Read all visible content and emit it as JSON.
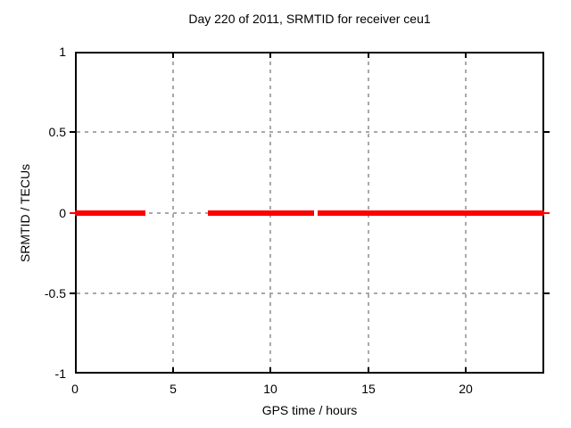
{
  "title": "Day 220 of 2011, SRMTID for receiver ceu1",
  "chart_data": {
    "type": "line",
    "title": "Day 220 of 2011, SRMTID for receiver ceu1",
    "xlabel": "GPS time / hours",
    "ylabel": "SRMTID / TECUs",
    "xlim": [
      0,
      24
    ],
    "ylim": [
      -1,
      1
    ],
    "x_ticks": [
      {
        "value": 0,
        "label": "0"
      },
      {
        "value": 5,
        "label": "5"
      },
      {
        "value": 10,
        "label": "10"
      },
      {
        "value": 15,
        "label": "15"
      },
      {
        "value": 20,
        "label": "20"
      }
    ],
    "y_ticks": [
      {
        "value": 1,
        "label": "1"
      },
      {
        "value": 0.5,
        "label": "0.5"
      },
      {
        "value": 0,
        "label": "0"
      },
      {
        "value": -0.5,
        "label": "-0.5"
      },
      {
        "value": -1,
        "label": "-1"
      }
    ],
    "grid": true,
    "grid_style": "dashed",
    "legend": false,
    "series": [
      {
        "name": "SRMTID",
        "y_value": 0,
        "segments_hours": [
          [
            0.0,
            3.6
          ],
          [
            6.8,
            12.25
          ],
          [
            12.4,
            24.0
          ]
        ]
      }
    ],
    "colors": {
      "line": "#ff0000",
      "grid": "#a8a8a8",
      "border": "#000000",
      "background": "#ffffff",
      "text": "#000000"
    }
  }
}
